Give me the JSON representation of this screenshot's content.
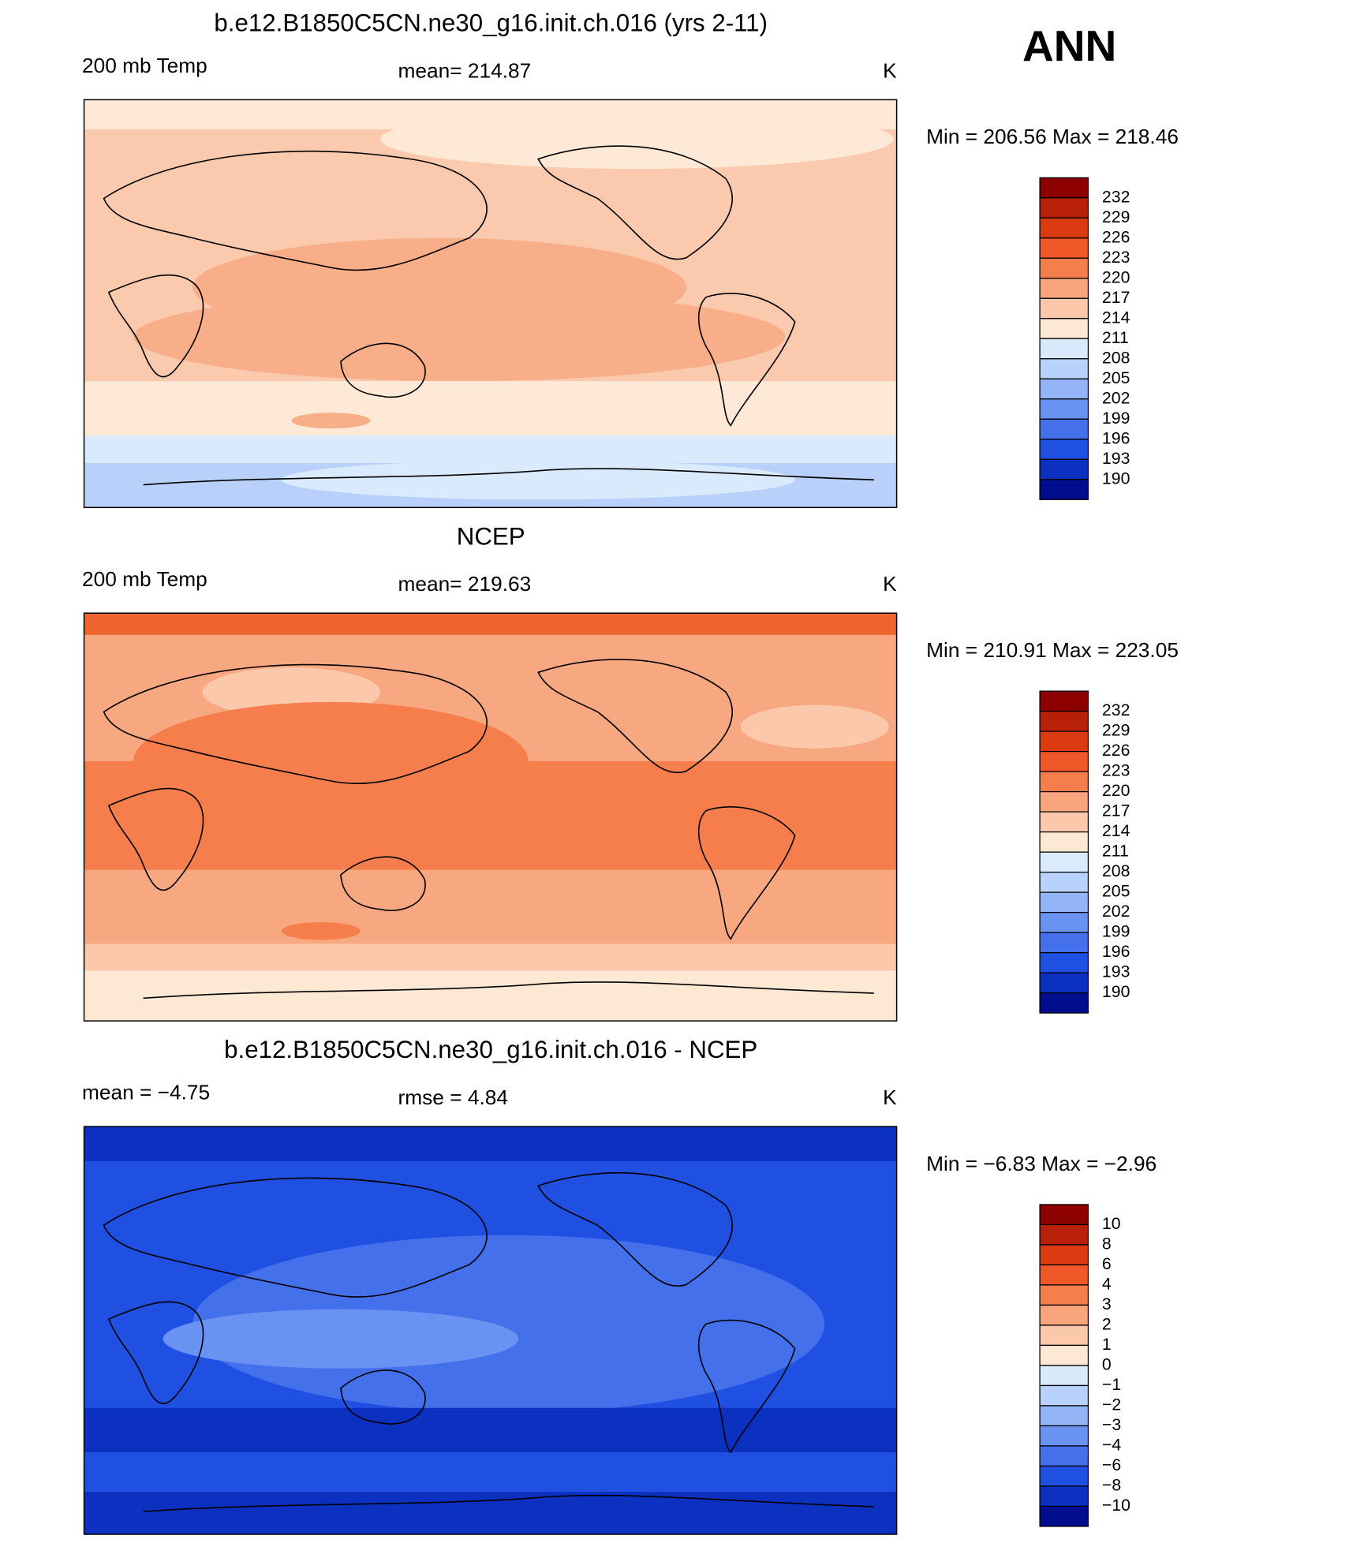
{
  "season": "ANN",
  "panels": [
    {
      "title": "b.e12.B1850C5CN.ne30_g16.init.ch.016 (yrs 2-11)",
      "left_label": "200 mb Temp",
      "center_label": "mean=  214.87",
      "unit": "K",
      "min_max": "Min  =  206.56  Max  =  218.46",
      "map_colors": [
        "#fbcaae",
        "#fde9d6",
        "#f8ae88",
        "#d8eafc",
        "#b8d0fa"
      ],
      "colorbar": {
        "labels": [
          "232",
          "229",
          "226",
          "223",
          "220",
          "217",
          "214",
          "211",
          "208",
          "205",
          "202",
          "199",
          "196",
          "193",
          "190"
        ],
        "colors": [
          "#8c0000",
          "#b8200a",
          "#dc3a10",
          "#f0582a",
          "#f57e4c",
          "#f8a47c",
          "#fbc8ab",
          "#fde8d4",
          "#d8eafc",
          "#b8d2fb",
          "#94b4f8",
          "#6a92f3",
          "#4470ec",
          "#2050e2",
          "#0c30c0",
          "#000d8c"
        ]
      }
    },
    {
      "title": "NCEP",
      "left_label": "200 mb Temp",
      "center_label": "mean=  219.63",
      "unit": "K",
      "min_max": "Min  =  210.91  Max  =  223.05",
      "map_colors": [
        "#f8a880",
        "#f57e4c",
        "#fbc8ab",
        "#fde8d4",
        "#f0652f"
      ],
      "colorbar": {
        "labels": [
          "232",
          "229",
          "226",
          "223",
          "220",
          "217",
          "214",
          "211",
          "208",
          "205",
          "202",
          "199",
          "196",
          "193",
          "190"
        ],
        "colors": [
          "#8c0000",
          "#b8200a",
          "#dc3a10",
          "#f0582a",
          "#f57e4c",
          "#f8a47c",
          "#fbc8ab",
          "#fde8d4",
          "#d8eafc",
          "#b8d2fb",
          "#94b4f8",
          "#6a92f3",
          "#4470ec",
          "#2050e2",
          "#0c30c0",
          "#000d8c"
        ]
      }
    },
    {
      "title": "b.e12.B1850C5CN.ne30_g16.init.ch.016 - NCEP",
      "left_label": "mean  =    −4.75",
      "center_label": "rmse  =     4.84",
      "unit": "K",
      "min_max": "Min  =    −6.83  Max  =    −2.96",
      "map_colors": [
        "#2050e2",
        "#4470ec",
        "#0c30c0",
        "#6a92f3",
        "#0c30c0"
      ],
      "colorbar": {
        "labels": [
          "10",
          "8",
          "6",
          "4",
          "3",
          "2",
          "1",
          "0",
          "−1",
          "−2",
          "−3",
          "−4",
          "−6",
          "−8",
          "−10"
        ],
        "colors": [
          "#8c0000",
          "#b8200a",
          "#dc3a10",
          "#f0582a",
          "#f57e4c",
          "#f8a47c",
          "#fbc8ab",
          "#fde8d4",
          "#d8eafc",
          "#b8d2fb",
          "#94b4f8",
          "#6a92f3",
          "#4470ec",
          "#2050e2",
          "#0c30c0",
          "#000d8c"
        ]
      }
    }
  ]
}
